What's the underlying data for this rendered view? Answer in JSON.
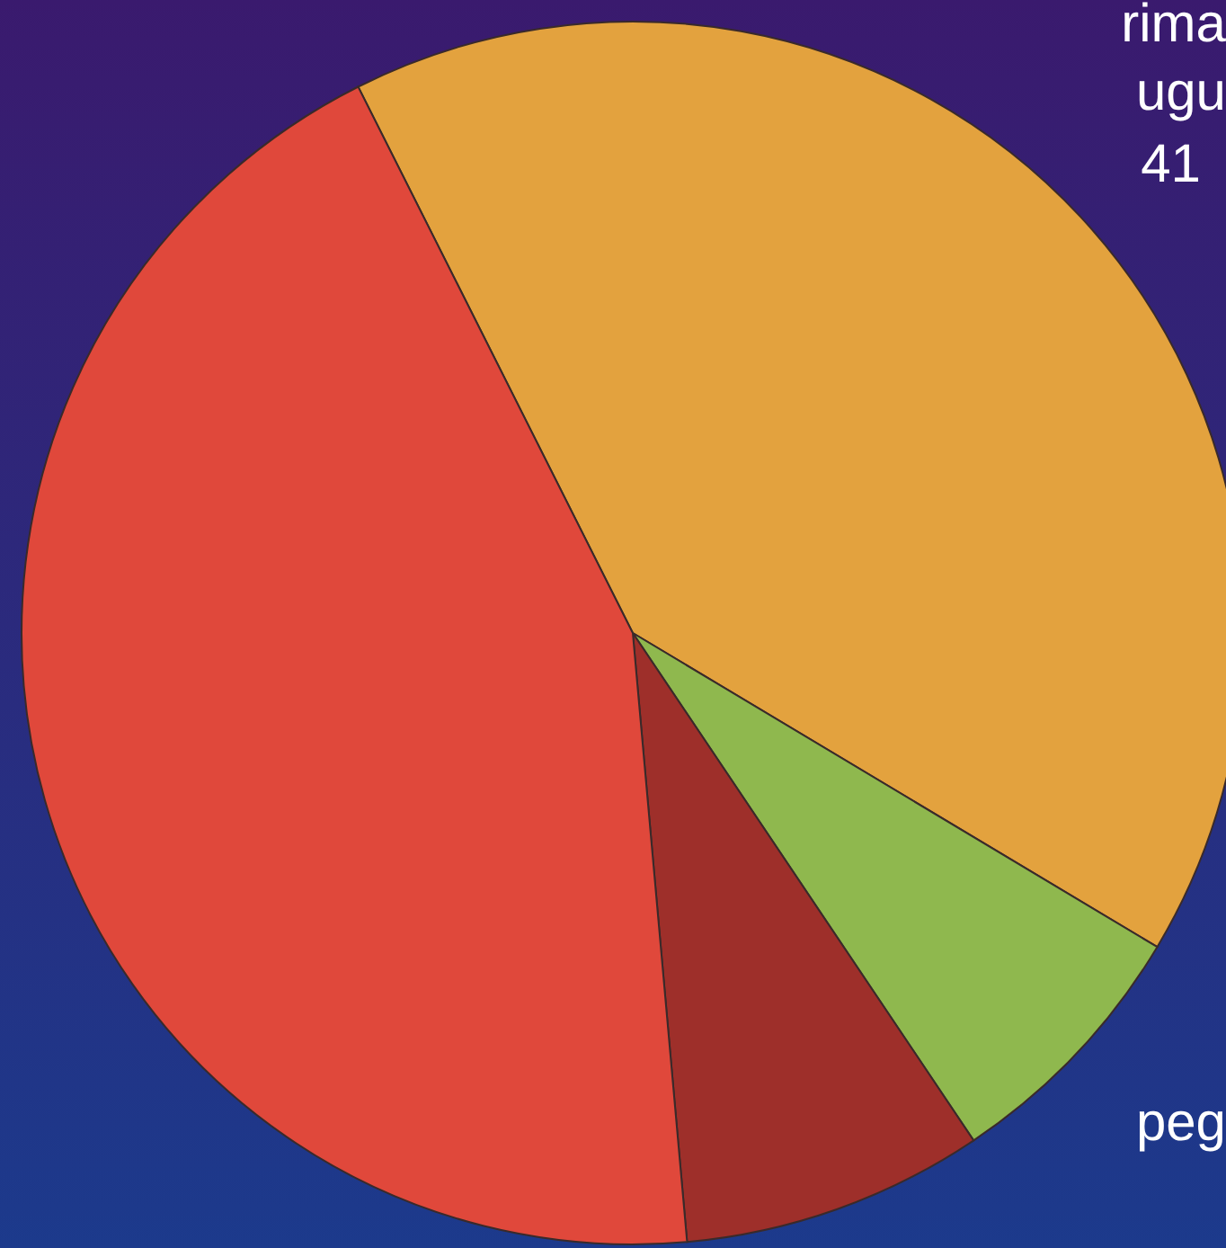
{
  "chart_data": {
    "type": "pie",
    "categories": [
      null,
      null,
      null,
      null
    ],
    "values": [
      41,
      7,
      8,
      44
    ],
    "colors": [
      "#e3a23e",
      "#8fb84e",
      "#9e2f2a",
      "#e0483b"
    ],
    "annotations": [
      "rima",
      "ugu",
      "41",
      "peg"
    ]
  }
}
